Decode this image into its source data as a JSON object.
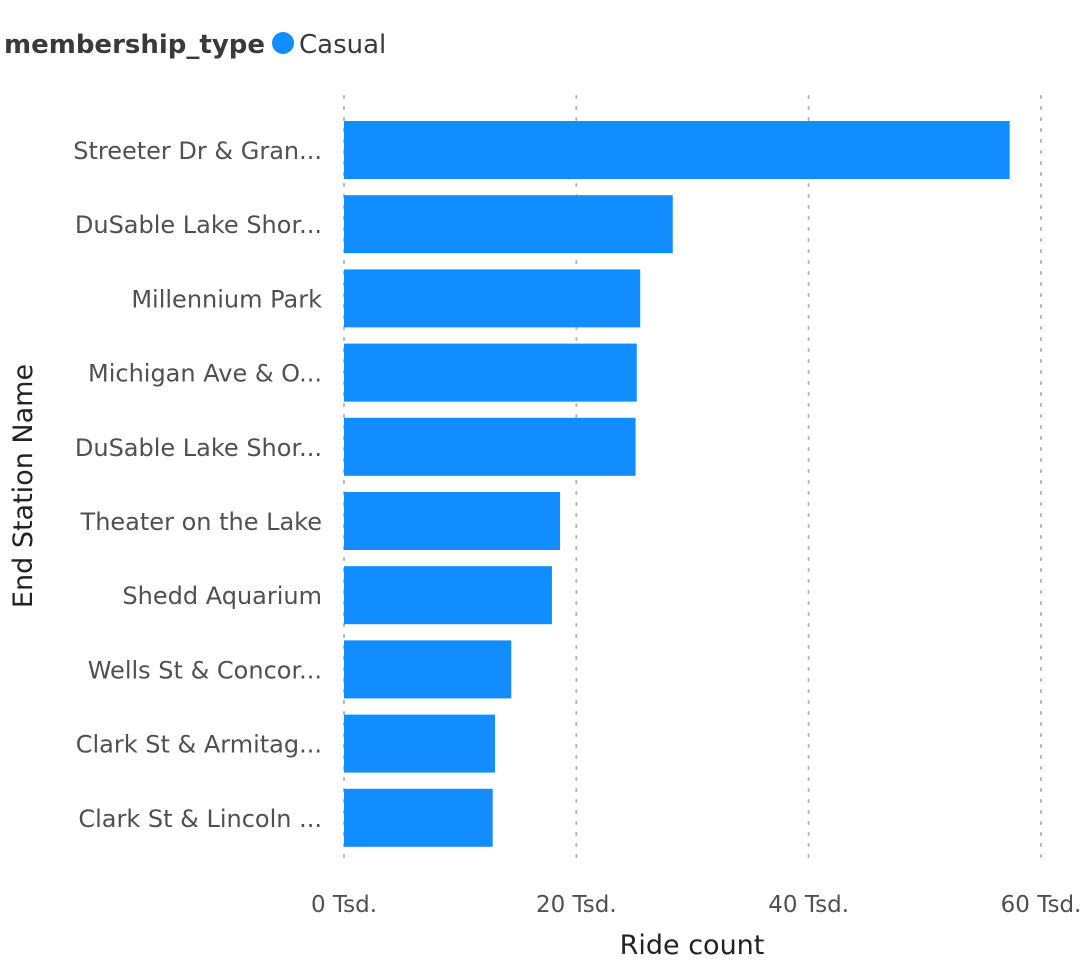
{
  "legend": {
    "title": "membership_type",
    "items": [
      {
        "label": "Casual",
        "color": "#118DFF"
      }
    ]
  },
  "chart_data": {
    "type": "bar",
    "orientation": "horizontal",
    "categories": [
      "Streeter Dr & Gran...",
      "DuSable Lake Shor...",
      "Millennium Park",
      "Michigan Ave & O...",
      "DuSable Lake Shor...",
      "Theater on the Lake",
      "Shedd Aquarium",
      "Wells St & Concor...",
      "Clark St & Armitag...",
      "Clark St & Lincoln ..."
    ],
    "series": [
      {
        "name": "Casual",
        "color": "#118DFF",
        "values": [
          57300,
          28300,
          25500,
          25200,
          25100,
          18600,
          17900,
          14400,
          13000,
          12800
        ]
      }
    ],
    "xlabel": "Ride count",
    "ylabel": "End Station Name",
    "xlim": [
      0,
      60000
    ],
    "xticks": [
      {
        "value": 0,
        "label": "0 Tsd."
      },
      {
        "value": 20000,
        "label": "20 Tsd."
      },
      {
        "value": 40000,
        "label": "40 Tsd."
      },
      {
        "value": 60000,
        "label": "60 Tsd."
      }
    ],
    "grid": "vertical-dotted",
    "legend_position": "top-left"
  }
}
